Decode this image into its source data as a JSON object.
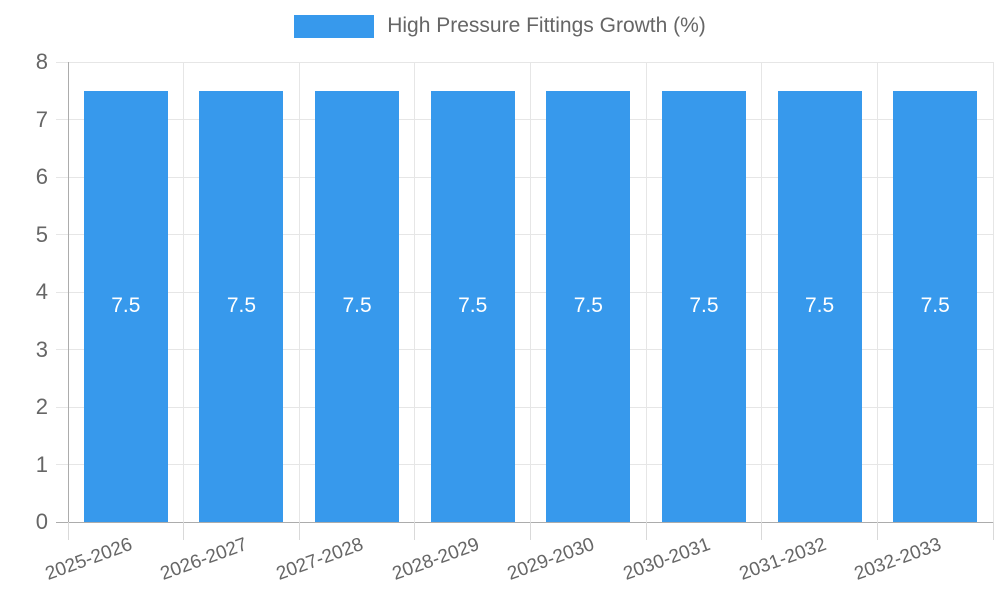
{
  "legend": {
    "label": "High Pressure Fittings Growth (%)"
  },
  "chart_data": {
    "type": "bar",
    "title": "High Pressure Fittings Growth (%)",
    "categories": [
      "2025-2026",
      "2026-2027",
      "2027-2028",
      "2028-2029",
      "2029-2030",
      "2030-2031",
      "2031-2032",
      "2032-2033"
    ],
    "values": [
      7.5,
      7.5,
      7.5,
      7.5,
      7.5,
      7.5,
      7.5,
      7.5
    ],
    "value_labels": [
      "7.5",
      "7.5",
      "7.5",
      "7.5",
      "7.5",
      "7.5",
      "7.5",
      "7.5"
    ],
    "xlabel": "",
    "ylabel": "",
    "ylim": [
      0,
      8
    ],
    "yticks": [
      0,
      1,
      2,
      3,
      4,
      5,
      6,
      7,
      8
    ],
    "grid": true,
    "legend_position": "top-center",
    "colors": {
      "bar": "#3799EC",
      "tick_text": "#666666",
      "value_text": "#FFFFFF",
      "gridline": "#E6E6E6",
      "axis_line": "#ACACAC",
      "tick_mark": "#D9D9D9"
    }
  }
}
